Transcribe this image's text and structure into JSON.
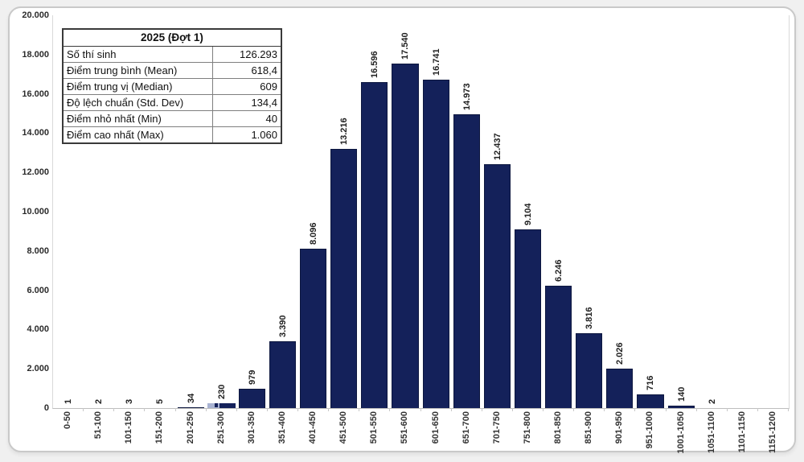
{
  "stats_table": {
    "title": "2025 (Đợt 1)",
    "rows": [
      {
        "label": "Số thí sinh",
        "value": "126.293"
      },
      {
        "label": "Điểm trung bình (Mean)",
        "value": "618,4"
      },
      {
        "label": "Điểm trung vị (Median)",
        "value": "609"
      },
      {
        "label": "Độ lệch chuẩn (Std. Dev)",
        "value": "134,4"
      },
      {
        "label": "Điểm nhỏ nhất (Min)",
        "value": "40"
      },
      {
        "label": "Điểm cao nhất (Max)",
        "value": "1.060"
      }
    ]
  },
  "chart_data": {
    "type": "bar",
    "title": "",
    "xlabel": "",
    "ylabel": "",
    "categories": [
      "0-50",
      "51-100",
      "101-150",
      "151-200",
      "201-250",
      "251-300",
      "301-350",
      "351-400",
      "401-450",
      "451-500",
      "501-550",
      "551-600",
      "601-650",
      "651-700",
      "701-750",
      "751-800",
      "801-850",
      "851-900",
      "901-950",
      "951-1000",
      "1001-1050",
      "1051-1100",
      "1101-1150",
      "1151-1200"
    ],
    "values": [
      1,
      2,
      3,
      5,
      34,
      230,
      979,
      3390,
      8096,
      13216,
      16596,
      17540,
      16741,
      14973,
      12437,
      9104,
      6246,
      3816,
      2026,
      716,
      140,
      2,
      0,
      0
    ],
    "value_labels": [
      "1",
      "2",
      "3",
      "5",
      "34",
      "230",
      "979",
      "3.390",
      "8.096",
      "13.216",
      "16.596",
      "17.540",
      "16.741",
      "14.973",
      "12.437",
      "9.104",
      "6.246",
      "3.816",
      "2.026",
      "716",
      "140",
      "2",
      "",
      ""
    ],
    "y_tick_labels": [
      "20.000",
      "18.000",
      "16.000",
      "14.000",
      "12.000",
      "10.000",
      "8.000",
      "6.000",
      "4.000",
      "2.000",
      "0"
    ],
    "ylim": [
      0,
      20000
    ],
    "grid": false,
    "legend": false,
    "bar_color": "#14215a",
    "selected_index": 5,
    "selection_color": "#a9b3d2"
  }
}
